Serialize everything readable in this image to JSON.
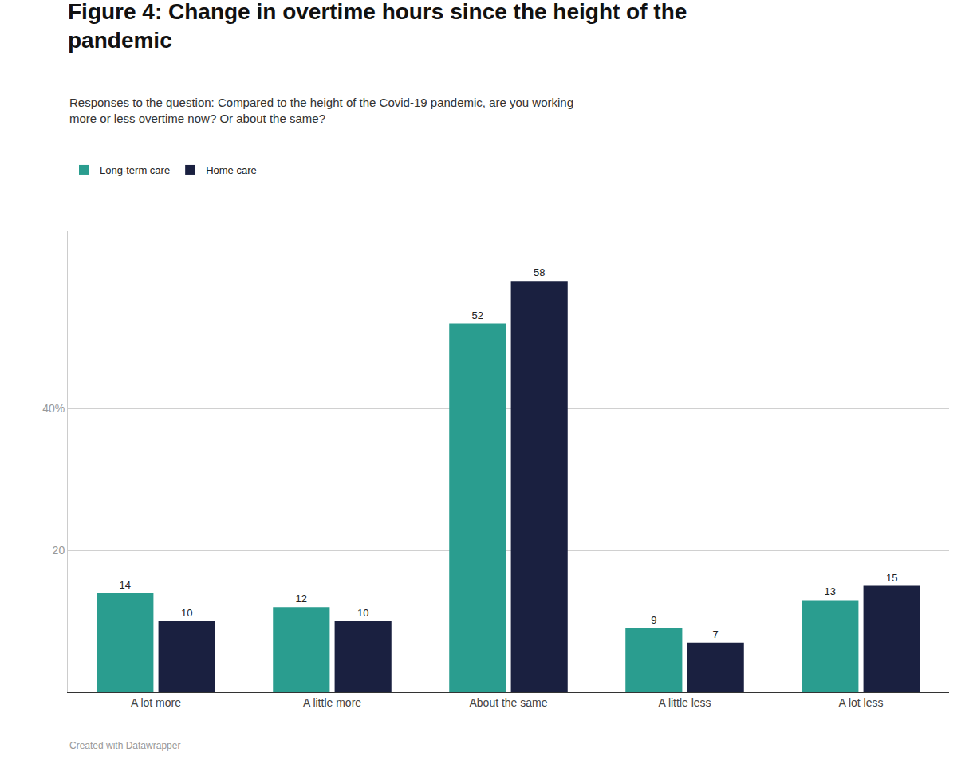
{
  "chart_data": {
    "type": "bar",
    "title": "Figure 4: Change in overtime hours since the height of the\npandemic",
    "subtitle": "Responses to the question: Compared to the height of the Covid-19 pandemic, are you working\nmore or less overtime now? Or about the same?",
    "annotations": [
      "Created with Datawrapper"
    ],
    "categories": [
      "A lot more",
      "A little more",
      "About the same",
      "A little less",
      "A lot less"
    ],
    "series": [
      {
        "name": "Long-term care",
        "color": "#2a9d8f",
        "values": [
          14,
          12,
          52,
          9,
          13
        ]
      },
      {
        "name": "Home care",
        "color": "#1a2040",
        "values": [
          10,
          10,
          58,
          7,
          15
        ]
      }
    ],
    "ylim": [
      0,
      65
    ],
    "yticks": [
      20,
      {
        "value": 40,
        "label": "40%"
      }
    ],
    "grid": true,
    "legend": "top left",
    "data_labels": true
  }
}
